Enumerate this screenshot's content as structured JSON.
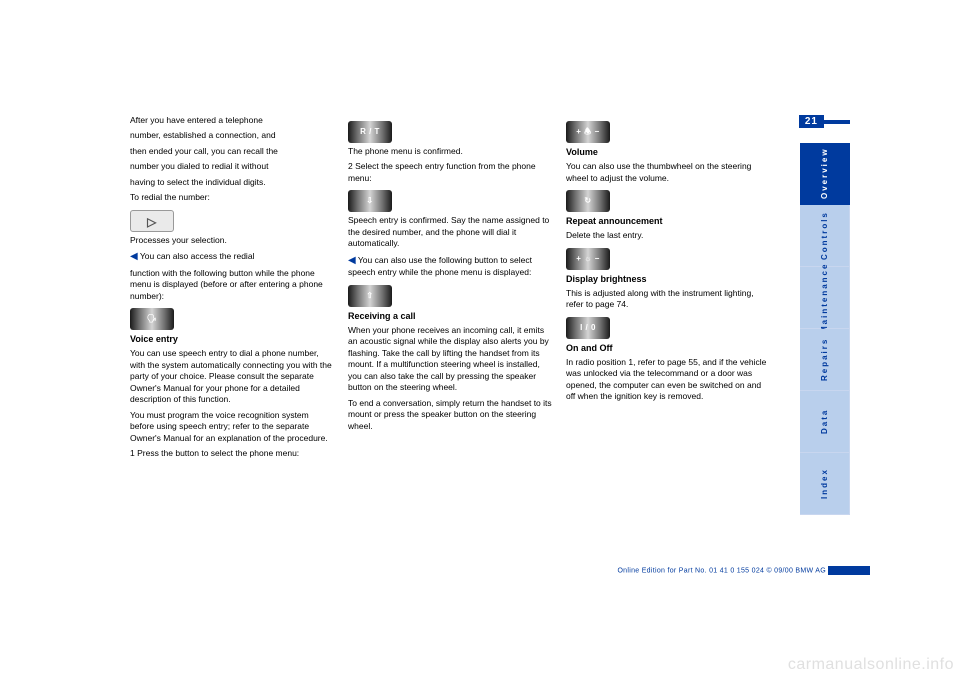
{
  "page_number": "21",
  "side_tabs": [
    {
      "label": "Overview",
      "active": true
    },
    {
      "label": "Controls",
      "active": false
    },
    {
      "label": "Maintenance",
      "active": false
    },
    {
      "label": "Repairs",
      "active": false
    },
    {
      "label": "Data",
      "active": false
    },
    {
      "label": "Index",
      "active": false
    }
  ],
  "col1": {
    "lines": [
      "After you have entered a telephone",
      "number, established a connection, and",
      "then ended your call, you can recall the",
      "number you dialed to redial it without",
      "having to select the individual digits."
    ],
    "redial": "To redial the number:",
    "redial_proc": "Processes your selection.",
    "note_intro": "You can also access the redial",
    "note_body": "function with the following button while the phone menu is displayed (before or after entering a phone number):",
    "btn_redial_label": "▷",
    "btn_speech_label": "🗣",
    "voice_title": "Voice entry",
    "voice_body1": "You can use speech entry to dial a phone number, with the system automatically connecting you with the party of your choice. Please consult the separate Owner's Manual for your phone for a detailed description of this function.",
    "voice_body2": "You must program the voice recognition system before using speech entry; refer to the separate Owner's Manual for an explanation of the procedure.",
    "voice_step1": "1 Press the button to select the phone menu:"
  },
  "col2": {
    "btn_rt": "R / T",
    "btn_down": "⇩",
    "btn_up": "⇧",
    "confirm": "The phone menu is confirmed.",
    "step2": "2 Select the speech entry function from the phone menu:",
    "speech_confirm": "Speech entry is confirmed. Say the name assigned to the desired number, and the phone will dial it automatically.",
    "note_arrow_text": "You can also use the following button to select speech entry while the phone menu is displayed:",
    "receive_title": "Receiving a call",
    "receive_body": "When your phone receives an incoming call, it emits an acoustic signal while the display also alerts you by flashing. Take the call by lifting the handset from its mount. If a multifunction steering wheel is installed, you can also take the call by pressing the speaker button on the steering wheel.",
    "end_call": "To end a conversation, simply return the handset to its mount or press the speaker button on the steering wheel."
  },
  "col3": {
    "btn_vol": "+  🕭  −",
    "btn_repeat": "↻",
    "btn_bright": "+  ☼  −",
    "btn_io": "I / 0",
    "vol_title": "Volume",
    "vol_body": "You can also use the thumbwheel on the steering wheel to adjust the volume.",
    "repeat_title": "Repeat announcement",
    "repeat_body": "Delete the last entry.",
    "bright_title": "Display brightness",
    "bright_body": "This is adjusted along with the instrument lighting, refer to page 74.",
    "io_title": "On and Off",
    "io_body": "In radio position 1, refer to page 55, and if the vehicle was unlocked via the telecommand or a door was opened, the computer can even be switched on and off when the ignition key is removed."
  },
  "footer": "Online Edition for Part No. 01 41 0 155 024    © 09/00 BMW AG",
  "watermark": "carmanualsonline.info",
  "colors": {
    "brand_blue": "#003a9e",
    "tab_light": "#b9cfec",
    "background": "#ffffff",
    "text": "#000000",
    "watermark": "#e0e0e0"
  }
}
